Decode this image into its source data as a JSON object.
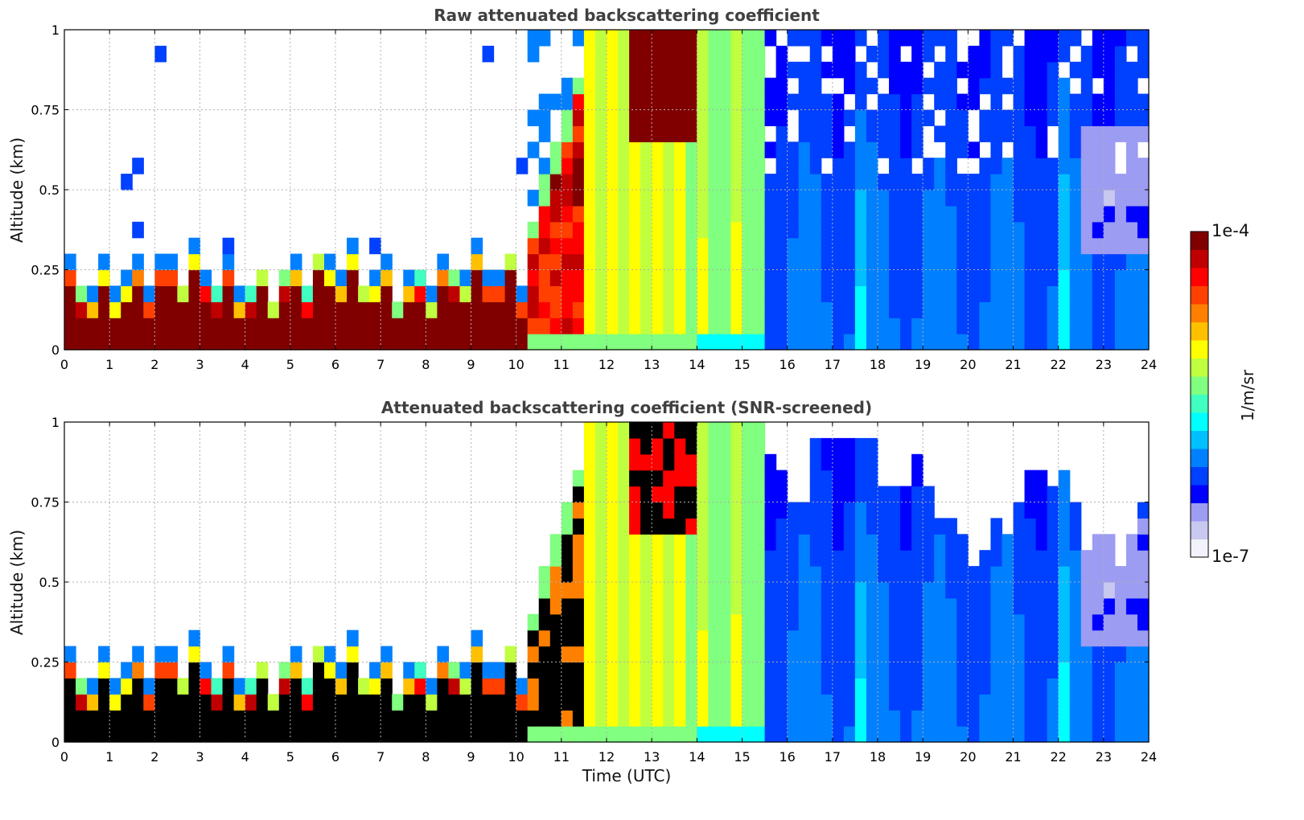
{
  "chart_data": [
    {
      "type": "heatmap",
      "title": "Raw attenuated backscattering coefficient",
      "xlabel": "",
      "ylabel": "Altitude (km)",
      "xlim": [
        0,
        24
      ],
      "ylim": [
        0,
        1
      ],
      "x_ticks": [
        "0",
        "1",
        "2",
        "3",
        "4",
        "5",
        "6",
        "7",
        "8",
        "9",
        "10",
        "11",
        "12",
        "13",
        "14",
        "15",
        "16",
        "17",
        "18",
        "19",
        "20",
        "21",
        "22",
        "23",
        "24"
      ],
      "y_ticks": [
        "0",
        "0.25",
        "0.5",
        "0.75",
        "1"
      ],
      "grid": true,
      "screened": false,
      "colorscale": "jet",
      "value_range": [
        "1e-7",
        "1e-4"
      ],
      "features": [
        {
          "time_range": [
            0,
            10.3
          ],
          "altitude_range": [
            0,
            0.3
          ],
          "description": "dense low aerosol layer",
          "level": "high"
        },
        {
          "time_range": [
            10.3,
            13.8
          ],
          "altitude_range": [
            0,
            1.0
          ],
          "description": "rising layer",
          "level": "high"
        },
        {
          "time_range": [
            11.5,
            15.5
          ],
          "altitude_range": [
            0,
            1.0
          ],
          "description": "elevated signal",
          "level": "medium"
        },
        {
          "time_range": [
            15.5,
            24
          ],
          "altitude_range": [
            0,
            1.0
          ],
          "description": "weak background",
          "level": "low"
        },
        {
          "time_range": [
            22.3,
            24
          ],
          "altitude_range": [
            0.3,
            0.75
          ],
          "description": "very weak region",
          "level": "very low"
        }
      ]
    },
    {
      "type": "heatmap",
      "title": "Attenuated backscattering coefficient (SNR-screened)",
      "xlabel": "Time (UTC)",
      "ylabel": "Altitude (km)",
      "xlim": [
        0,
        24
      ],
      "ylim": [
        0,
        1
      ],
      "x_ticks": [
        "0",
        "1",
        "2",
        "3",
        "4",
        "5",
        "6",
        "7",
        "8",
        "9",
        "10",
        "11",
        "12",
        "13",
        "14",
        "15",
        "16",
        "17",
        "18",
        "19",
        "20",
        "21",
        "22",
        "23",
        "24"
      ],
      "y_ticks": [
        "0",
        "0.25",
        "0.5",
        "0.75",
        "1"
      ],
      "grid": true,
      "screened": true,
      "colorscale": "jet",
      "value_range": [
        "1e-7",
        "1e-4"
      ],
      "features": [
        {
          "time_range": [
            0,
            10.3
          ],
          "altitude_range": [
            0,
            0.3
          ],
          "description": "saturated low layer",
          "level": "saturated"
        },
        {
          "time_range": [
            10.3,
            13.8
          ],
          "altitude_range": [
            0,
            1.0
          ],
          "description": "saturated rising layer",
          "level": "saturated"
        },
        {
          "time_range": [
            11.5,
            15.5
          ],
          "altitude_range": [
            0,
            1.0
          ],
          "description": "elevated signal",
          "level": "medium"
        },
        {
          "time_range": [
            15.5,
            24
          ],
          "altitude_range": [
            0,
            0.75
          ],
          "description": "weak background below screened noise",
          "level": "low"
        },
        {
          "time_range": [
            22.5,
            24
          ],
          "altitude_range": [
            0.3,
            0.6
          ],
          "description": "very weak region",
          "level": "very low"
        }
      ]
    }
  ],
  "colorbar": {
    "label": "1/m/sr",
    "max_label": "1e-4",
    "min_label": "1e-7",
    "colors": [
      "#f2f2fa",
      "#c8c8f0",
      "#9c9cf2",
      "#0000ff",
      "#0040ff",
      "#0080ff",
      "#00c0ff",
      "#00ffff",
      "#40ffc0",
      "#80ff80",
      "#c0ff40",
      "#ffff00",
      "#ffc000",
      "#ff8000",
      "#ff4000",
      "#ff0000",
      "#c00000",
      "#800000"
    ]
  }
}
